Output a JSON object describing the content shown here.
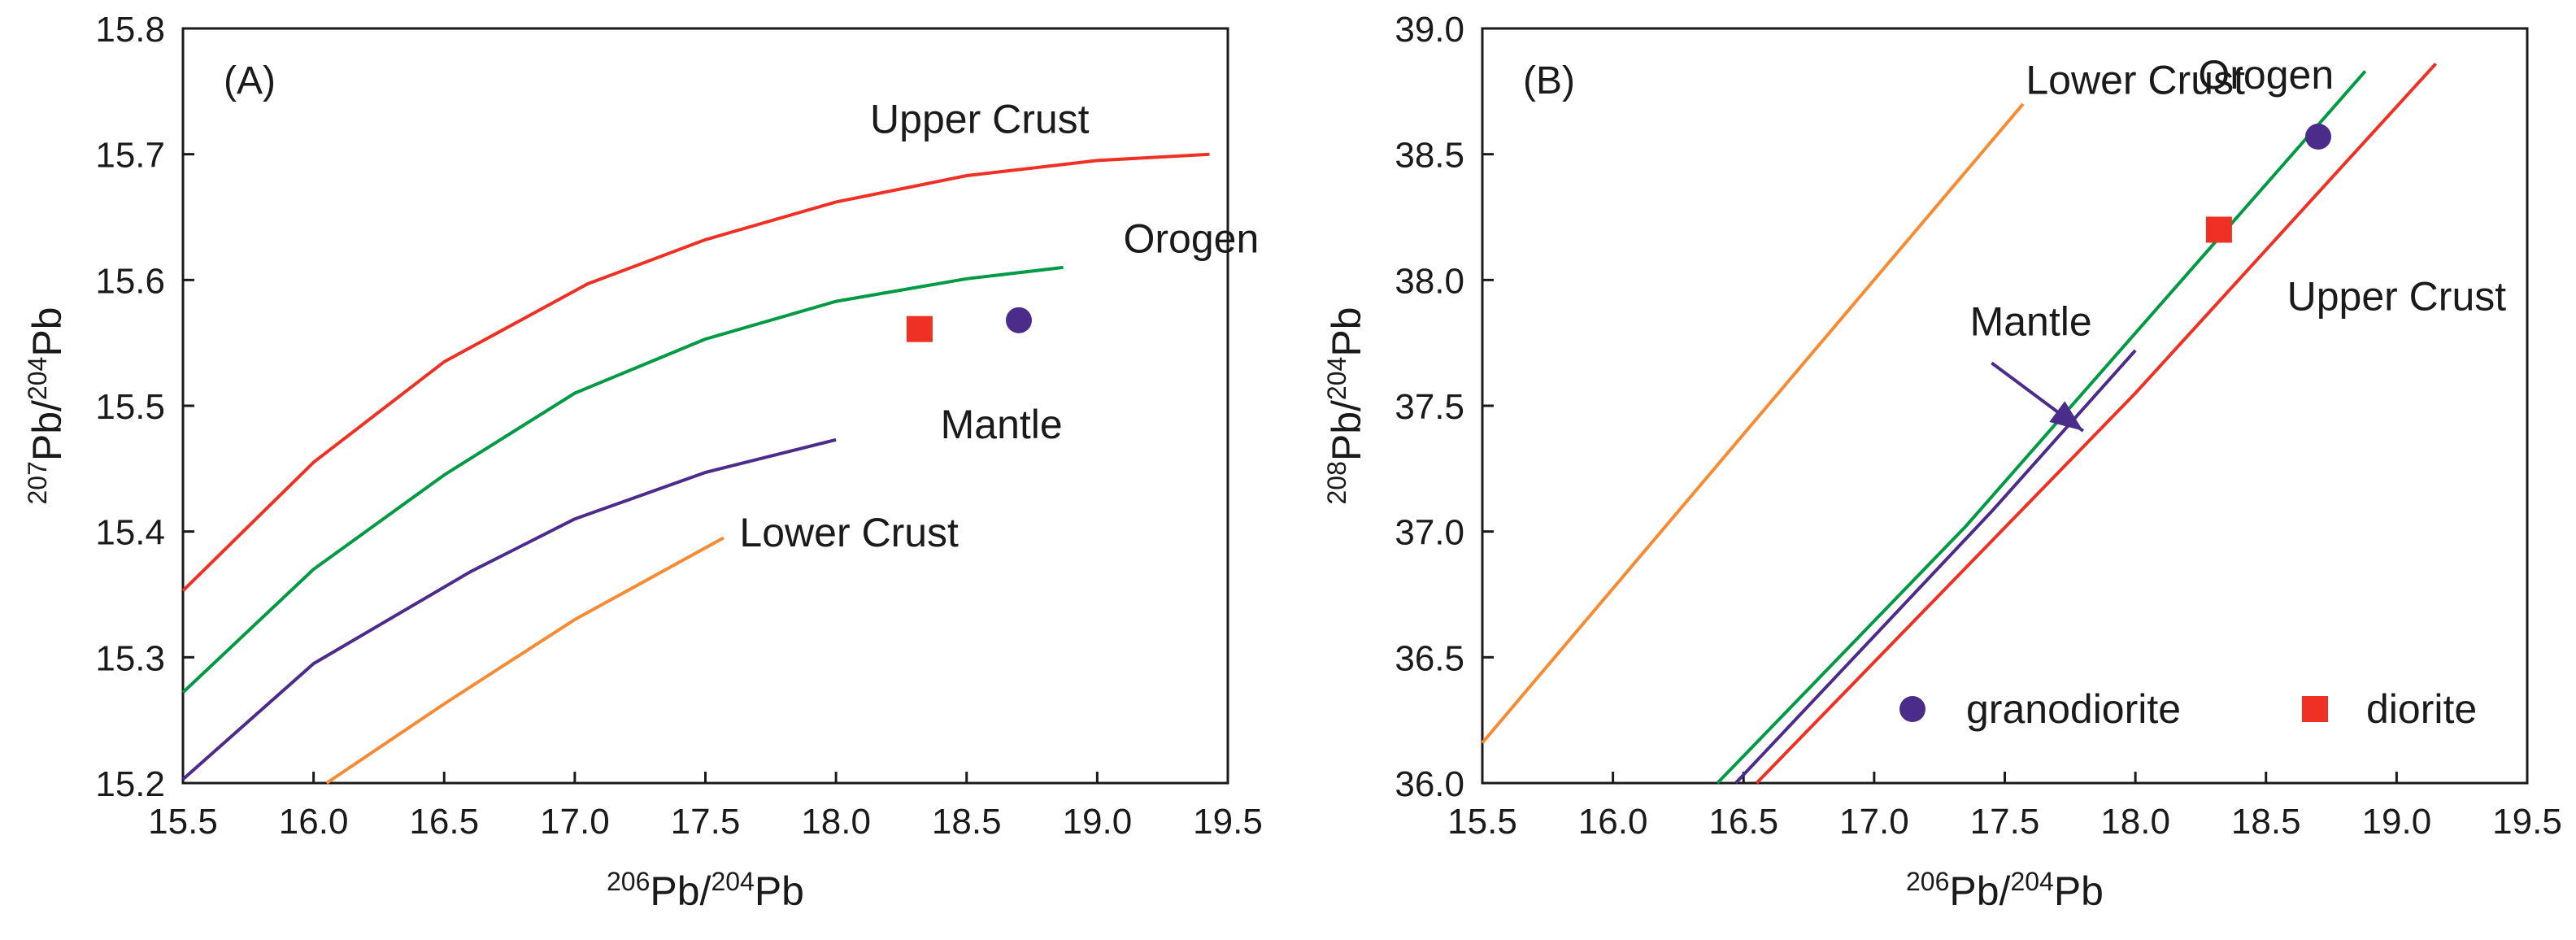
{
  "chart_data": [
    {
      "type": "line",
      "panel_label": "(A)",
      "xlabel": {
        "sup1": "206",
        "main1": "Pb/",
        "sup2": "204",
        "main2": "Pb"
      },
      "ylabel": {
        "sup1": "207",
        "main1": "Pb/",
        "sup2": "204",
        "main2": "Pb"
      },
      "xlim": [
        15.5,
        19.5
      ],
      "ylim": [
        15.2,
        15.8
      ],
      "xticks": [
        "15.5",
        "16.0",
        "16.5",
        "17.0",
        "17.5",
        "18.0",
        "18.5",
        "19.0",
        "19.5"
      ],
      "yticks": [
        "15.2",
        "15.3",
        "15.4",
        "15.5",
        "15.6",
        "15.7",
        "15.8"
      ],
      "series": [
        {
          "name": "Upper Crust",
          "color": "#ee3124",
          "x": [
            15.5,
            16.0,
            16.5,
            17.05,
            17.5,
            18.0,
            18.5,
            19.0,
            19.43
          ],
          "y": [
            15.353,
            15.455,
            15.535,
            15.597,
            15.632,
            15.662,
            15.683,
            15.695,
            15.7
          ]
        },
        {
          "name": "Orogen",
          "color": "#009a44",
          "x": [
            15.5,
            16.0,
            16.5,
            17.0,
            17.5,
            18.0,
            18.5,
            18.87
          ],
          "y": [
            15.272,
            15.37,
            15.445,
            15.51,
            15.553,
            15.583,
            15.601,
            15.61
          ]
        },
        {
          "name": "Mantle",
          "color": "#4b2c8b",
          "x": [
            15.5,
            16.0,
            16.6,
            17.0,
            17.5,
            18.0
          ],
          "y": [
            15.203,
            15.295,
            15.368,
            15.41,
            15.447,
            15.473
          ]
        },
        {
          "name": "Lower Crust",
          "color": "#f68b33",
          "x": [
            16.05,
            16.5,
            17.0,
            17.57
          ],
          "y": [
            15.2,
            15.263,
            15.33,
            15.395
          ]
        }
      ],
      "curve_labels": [
        {
          "text": "Upper Crust",
          "x": 18.55,
          "y": 15.717
        },
        {
          "text": "Orogen",
          "x": 19.1,
          "y": 15.622
        },
        {
          "text": "Mantle",
          "x": 18.4,
          "y": 15.474
        },
        {
          "text": "Lower Crust",
          "x": 18.05,
          "y": 15.388
        }
      ],
      "points": [
        {
          "name": "granodiorite",
          "shape": "circle",
          "color": "#4b2c8b",
          "x": 18.7,
          "y": 15.568
        },
        {
          "name": "diorite",
          "shape": "square",
          "color": "#ee3124",
          "x": 18.32,
          "y": 15.561
        }
      ]
    },
    {
      "type": "line",
      "panel_label": "(B)",
      "xlabel": {
        "sup1": "206",
        "main1": "Pb/",
        "sup2": "204",
        "main2": "Pb"
      },
      "ylabel": {
        "sup1": "208",
        "main1": "Pb/",
        "sup2": "204",
        "main2": "Pb"
      },
      "xlim": [
        15.5,
        19.5
      ],
      "ylim": [
        36.0,
        39.0
      ],
      "xticks": [
        "15.5",
        "16.0",
        "16.5",
        "17.0",
        "17.5",
        "18.0",
        "18.5",
        "19.0",
        "19.5"
      ],
      "yticks": [
        "36.0",
        "36.5",
        "37.0",
        "37.5",
        "38.0",
        "38.5",
        "39.0"
      ],
      "series": [
        {
          "name": "Lower Crust",
          "color": "#f68b33",
          "x": [
            15.5,
            17.57
          ],
          "y": [
            36.16,
            38.7
          ]
        },
        {
          "name": "Orogen",
          "color": "#009a44",
          "x": [
            16.4,
            17.35,
            18.88
          ],
          "y": [
            36.0,
            37.02,
            38.83
          ]
        },
        {
          "name": "Mantle",
          "color": "#4b2c8b",
          "x": [
            16.47,
            17.45,
            18.0
          ],
          "y": [
            36.0,
            37.08,
            37.72
          ]
        },
        {
          "name": "Upper Crust",
          "color": "#ee3124",
          "x": [
            16.55,
            18.0,
            19.15
          ],
          "y": [
            36.0,
            37.55,
            38.86
          ]
        }
      ],
      "curve_labels": [
        {
          "text": "Lower Crust",
          "x": 18.0,
          "y": 38.74
        },
        {
          "text": "Orogen",
          "x": 18.5,
          "y": 38.76
        },
        {
          "text": "Mantle",
          "x": 17.6,
          "y": 37.78
        },
        {
          "text": "Upper Crust",
          "x": 19.0,
          "y": 37.88
        }
      ],
      "annotation_arrow": {
        "from_x": 17.45,
        "from_y": 37.67,
        "to_x": 17.8,
        "to_y": 37.4,
        "color": "#4b2c8b"
      },
      "points": [
        {
          "name": "granodiorite",
          "shape": "circle",
          "color": "#4b2c8b",
          "x": 18.7,
          "y": 38.57
        },
        {
          "name": "diorite",
          "shape": "square",
          "color": "#ee3124",
          "x": 18.32,
          "y": 38.2
        }
      ],
      "legend": {
        "position": "lower-right",
        "items": [
          {
            "label": "granodiorite",
            "shape": "circle",
            "color": "#4b2c8b"
          },
          {
            "label": "diorite",
            "shape": "square",
            "color": "#ee3124"
          }
        ]
      }
    }
  ]
}
